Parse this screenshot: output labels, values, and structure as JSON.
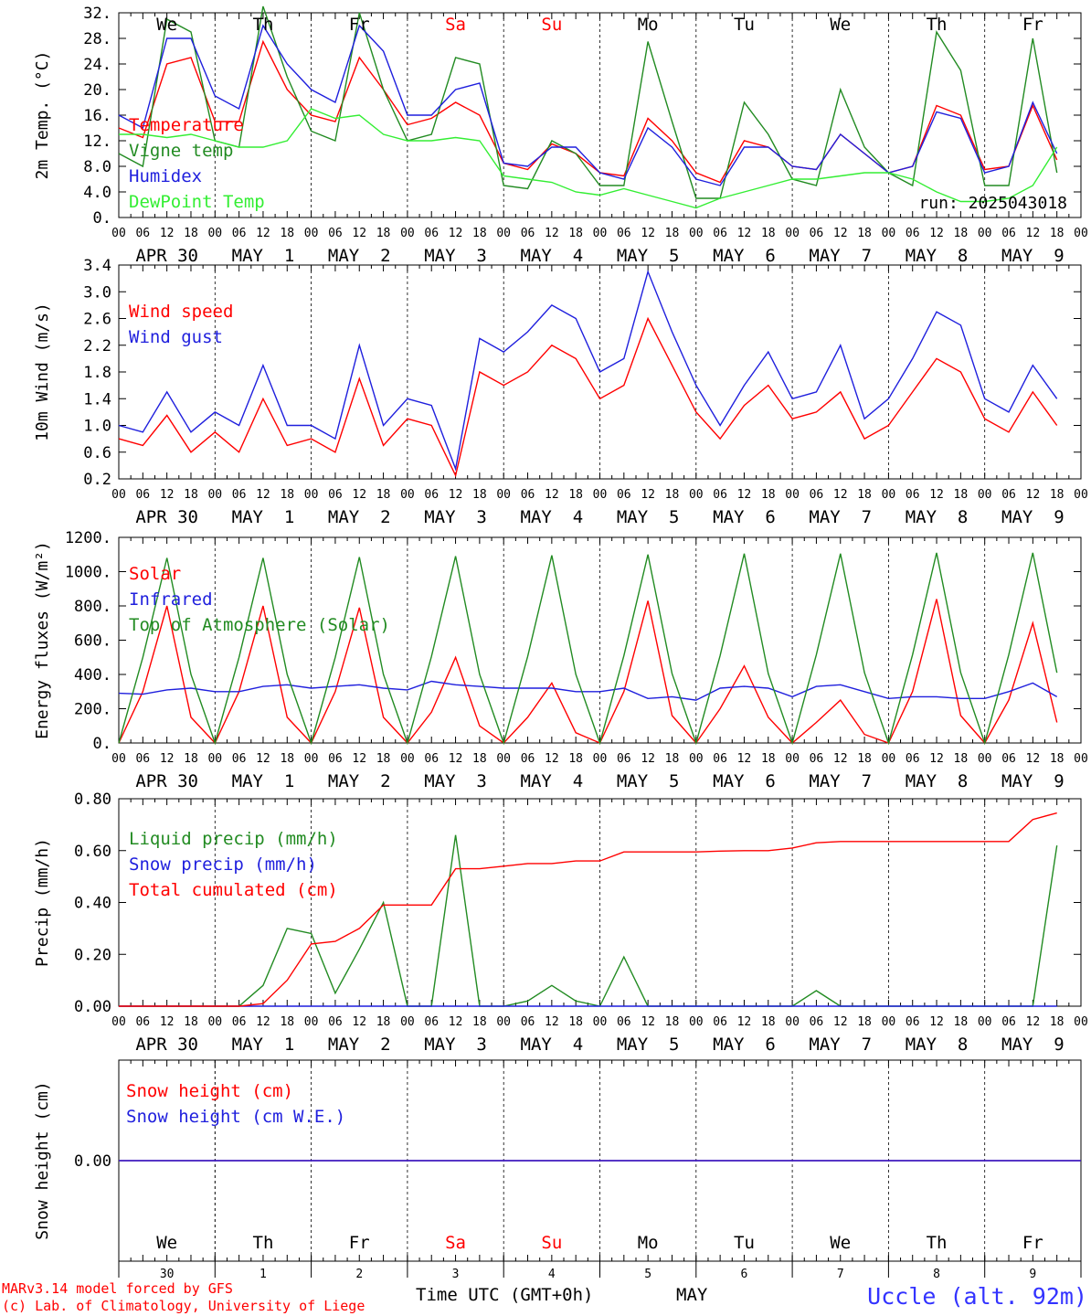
{
  "colors": {
    "red": "#ff0000",
    "darkgreen": "#228b22",
    "lightgreen": "#33ee33",
    "blue": "#1f1fdd",
    "weekday_weekend": "#ff0000",
    "location": "#3333ff"
  },
  "days": [
    "We",
    "Th",
    "Fr",
    "Sa",
    "Su",
    "Mo",
    "Tu",
    "We",
    "Th",
    "Fr"
  ],
  "weekend_days": [
    "Sa",
    "Su"
  ],
  "hour_ticks": [
    "00",
    "06",
    "12",
    "18"
  ],
  "hour_tick_end": "00",
  "date_labels": [
    "APR 30",
    "MAY  1",
    "MAY  2",
    "MAY  3",
    "MAY  4",
    "MAY  5",
    "MAY  6",
    "MAY  7",
    "MAY  8",
    "MAY  9"
  ],
  "footer": {
    "model": "MARv3.14 model forced by GFS",
    "lab": "(c) Lab. of Climatology, University of Liege",
    "time_label": "Time UTC (GMT+0h)",
    "month": "MAY",
    "location": "Uccle (alt. 92m)",
    "day_numbers": [
      "30",
      "1",
      "2",
      "3",
      "4",
      "5",
      "6",
      "7",
      "8",
      "9"
    ]
  },
  "chart_data": [
    {
      "type": "line",
      "id": "temperature",
      "ylabel": "2m Temp. (°C)",
      "ylim": [
        0,
        32
      ],
      "yticks": [
        "0.",
        "4.0",
        "8.0",
        "12.",
        "16.",
        "20.",
        "24.",
        "28.",
        "32."
      ],
      "run_label": "run: 2025043018",
      "x_hours": [
        0,
        6,
        12,
        18,
        24,
        30,
        36,
        42,
        48,
        54,
        60,
        66,
        72,
        78,
        84,
        90,
        96,
        102,
        108,
        114,
        120,
        126,
        132,
        138,
        144,
        150,
        156,
        162,
        168,
        174,
        180,
        186,
        192,
        198,
        204,
        210,
        216,
        222,
        228,
        234
      ],
      "series": [
        {
          "name": "Temperature",
          "color": "red",
          "values": [
            14,
            12.5,
            24,
            25,
            15,
            15,
            27.5,
            20,
            16,
            15,
            25,
            20,
            14.5,
            15.5,
            18,
            16,
            8.5,
            7.5,
            11.5,
            10,
            7,
            6.5,
            15.5,
            12,
            7,
            5.5,
            12,
            11,
            8,
            7.5,
            13,
            10,
            7,
            8,
            17.5,
            16,
            7.5,
            8,
            17.5,
            9
          ]
        },
        {
          "name": "Vigne temp",
          "color": "darkgreen",
          "values": [
            10,
            8,
            31,
            29,
            12,
            11,
            33,
            22,
            13.5,
            12,
            32,
            20,
            12,
            13,
            25,
            24,
            5,
            4.5,
            12,
            10,
            5,
            5,
            27.5,
            15,
            3,
            3,
            18,
            13,
            6,
            5,
            20,
            11,
            7,
            5,
            29,
            23,
            5,
            5,
            28,
            7
          ]
        },
        {
          "name": "Humidex",
          "color": "blue",
          "values": [
            16,
            14,
            28,
            28,
            19,
            17,
            30,
            24,
            20,
            18,
            30,
            26,
            16,
            16,
            20,
            21,
            8.5,
            8,
            11,
            11,
            7,
            6,
            14,
            11,
            6,
            5,
            11,
            11,
            8,
            7.5,
            13,
            10,
            7,
            8,
            16.5,
            15.5,
            7,
            8,
            18,
            10
          ]
        },
        {
          "name": "DewPoint Temp",
          "color": "lightgreen",
          "values": [
            13,
            13,
            12.5,
            13,
            12,
            11,
            11,
            12,
            17,
            15.5,
            16,
            13,
            12,
            12,
            12.5,
            12,
            6.5,
            6,
            5.5,
            4,
            3.5,
            4.5,
            3.5,
            2.5,
            1.5,
            3,
            4,
            5,
            6,
            6,
            6.5,
            7,
            7,
            6,
            4,
            2.5,
            2.5,
            3,
            5,
            11
          ]
        }
      ]
    },
    {
      "type": "line",
      "id": "wind",
      "ylabel": "10m Wind (m/s)",
      "ylim": [
        0.2,
        3.4
      ],
      "yticks": [
        "0.2",
        "0.6",
        "1.0",
        "1.4",
        "1.8",
        "2.2",
        "2.6",
        "3.0",
        "3.4"
      ],
      "x_hours": [
        0,
        6,
        12,
        18,
        24,
        30,
        36,
        42,
        48,
        54,
        60,
        66,
        72,
        78,
        84,
        90,
        96,
        102,
        108,
        114,
        120,
        126,
        132,
        138,
        144,
        150,
        156,
        162,
        168,
        174,
        180,
        186,
        192,
        198,
        204,
        210,
        216,
        222,
        228,
        234
      ],
      "series": [
        {
          "name": "Wind speed",
          "color": "red",
          "values": [
            0.8,
            0.7,
            1.15,
            0.6,
            0.9,
            0.6,
            1.4,
            0.7,
            0.8,
            0.6,
            1.7,
            0.7,
            1.1,
            1.0,
            0.25,
            1.8,
            1.6,
            1.8,
            2.2,
            2.0,
            1.4,
            1.6,
            2.6,
            1.9,
            1.2,
            0.8,
            1.3,
            1.6,
            1.1,
            1.2,
            1.5,
            0.8,
            1.0,
            1.5,
            2.0,
            1.8,
            1.1,
            0.9,
            1.5,
            1.0
          ]
        },
        {
          "name": "Wind gust",
          "color": "blue",
          "values": [
            1.0,
            0.9,
            1.5,
            0.9,
            1.2,
            1.0,
            1.9,
            1.0,
            1.0,
            0.8,
            2.2,
            1.0,
            1.4,
            1.3,
            0.35,
            2.3,
            2.1,
            2.4,
            2.8,
            2.6,
            1.8,
            2.0,
            3.3,
            2.4,
            1.6,
            1.0,
            1.6,
            2.1,
            1.4,
            1.5,
            2.2,
            1.1,
            1.4,
            2.0,
            2.7,
            2.5,
            1.4,
            1.2,
            1.9,
            1.4
          ]
        }
      ]
    },
    {
      "type": "line",
      "id": "energy",
      "ylabel": "Energy fluxes (W/m²)",
      "ylim": [
        0,
        1200
      ],
      "yticks": [
        "0.",
        "200.",
        "400.",
        "600.",
        "800.",
        "1000.",
        "1200."
      ],
      "x_hours": [
        0,
        6,
        12,
        18,
        24,
        30,
        36,
        42,
        48,
        54,
        60,
        66,
        72,
        78,
        84,
        90,
        96,
        102,
        108,
        114,
        120,
        126,
        132,
        138,
        144,
        150,
        156,
        162,
        168,
        174,
        180,
        186,
        192,
        198,
        204,
        210,
        216,
        222,
        228,
        234
      ],
      "series": [
        {
          "name": "Solar",
          "color": "red",
          "values": [
            0,
            300,
            800,
            150,
            0,
            300,
            800,
            150,
            0,
            300,
            790,
            150,
            0,
            180,
            500,
            100,
            0,
            150,
            350,
            60,
            0,
            300,
            830,
            160,
            0,
            200,
            450,
            150,
            0,
            120,
            250,
            50,
            0,
            300,
            840,
            160,
            0,
            250,
            700,
            120
          ]
        },
        {
          "name": "Infrared",
          "color": "blue",
          "values": [
            290,
            285,
            310,
            320,
            300,
            300,
            330,
            340,
            320,
            330,
            340,
            320,
            310,
            360,
            340,
            330,
            320,
            320,
            320,
            300,
            300,
            320,
            260,
            270,
            250,
            320,
            330,
            320,
            270,
            330,
            340,
            300,
            260,
            270,
            270,
            260,
            260,
            300,
            350,
            270
          ]
        },
        {
          "name": "Top of Atmosphere (Solar)",
          "color": "darkgreen",
          "values": [
            0,
            500,
            1080,
            400,
            0,
            500,
            1080,
            400,
            0,
            500,
            1085,
            400,
            0,
            505,
            1090,
            400,
            0,
            505,
            1095,
            400,
            0,
            510,
            1100,
            405,
            0,
            510,
            1105,
            405,
            0,
            515,
            1105,
            410,
            0,
            515,
            1110,
            410,
            0,
            515,
            1110,
            410
          ]
        }
      ]
    },
    {
      "type": "line",
      "id": "precip",
      "ylabel": "Precip (mm/h)",
      "ylim": [
        0,
        0.8
      ],
      "yticks": [
        "0.00",
        "0.20",
        "0.40",
        "0.60",
        "0.80"
      ],
      "x_hours": [
        0,
        6,
        12,
        18,
        24,
        30,
        36,
        42,
        48,
        54,
        60,
        66,
        72,
        78,
        84,
        90,
        96,
        102,
        108,
        114,
        120,
        126,
        132,
        138,
        144,
        150,
        156,
        162,
        168,
        174,
        180,
        186,
        192,
        198,
        204,
        210,
        216,
        222,
        228,
        234
      ],
      "series": [
        {
          "name": "Liquid precip (mm/h)",
          "color": "darkgreen",
          "values": [
            0,
            0,
            0,
            0,
            0,
            0,
            0.08,
            0.3,
            0.28,
            0.05,
            0.22,
            0.4,
            0,
            0,
            0.66,
            0,
            0,
            0.02,
            0.08,
            0.02,
            0,
            0.19,
            0,
            0,
            0,
            0,
            0,
            0,
            0,
            0.06,
            0,
            0,
            0,
            0,
            0,
            0,
            0,
            0,
            0,
            0.62
          ]
        },
        {
          "name": "Snow precip (mm/h)",
          "color": "blue",
          "values": [
            0,
            0,
            0,
            0,
            0,
            0,
            0,
            0,
            0,
            0,
            0,
            0,
            0,
            0,
            0,
            0,
            0,
            0,
            0,
            0,
            0,
            0,
            0,
            0,
            0,
            0,
            0,
            0,
            0,
            0,
            0,
            0,
            0,
            0,
            0,
            0,
            0,
            0,
            0,
            0
          ]
        },
        {
          "name": "Total cumulated (cm)",
          "color": "red",
          "values": [
            0,
            0,
            0,
            0,
            0,
            0,
            0.01,
            0.1,
            0.24,
            0.25,
            0.3,
            0.39,
            0.39,
            0.39,
            0.53,
            0.53,
            0.54,
            0.55,
            0.55,
            0.56,
            0.56,
            0.595,
            0.595,
            0.595,
            0.595,
            0.598,
            0.6,
            0.6,
            0.61,
            0.63,
            0.635,
            0.635,
            0.635,
            0.635,
            0.635,
            0.635,
            0.635,
            0.635,
            0.72,
            0.745
          ]
        }
      ]
    },
    {
      "type": "line",
      "id": "snow",
      "ylabel": "Snow height (cm)",
      "ylim": [
        -1,
        1
      ],
      "yticks": [
        "0.00"
      ],
      "x_hours": [
        0,
        240
      ],
      "series": [
        {
          "name": "Snow height (cm)",
          "color": "red",
          "values": [
            0,
            0
          ]
        },
        {
          "name": "Snow height (cm W.E.)",
          "color": "blue",
          "values": [
            0,
            0
          ]
        }
      ]
    }
  ]
}
